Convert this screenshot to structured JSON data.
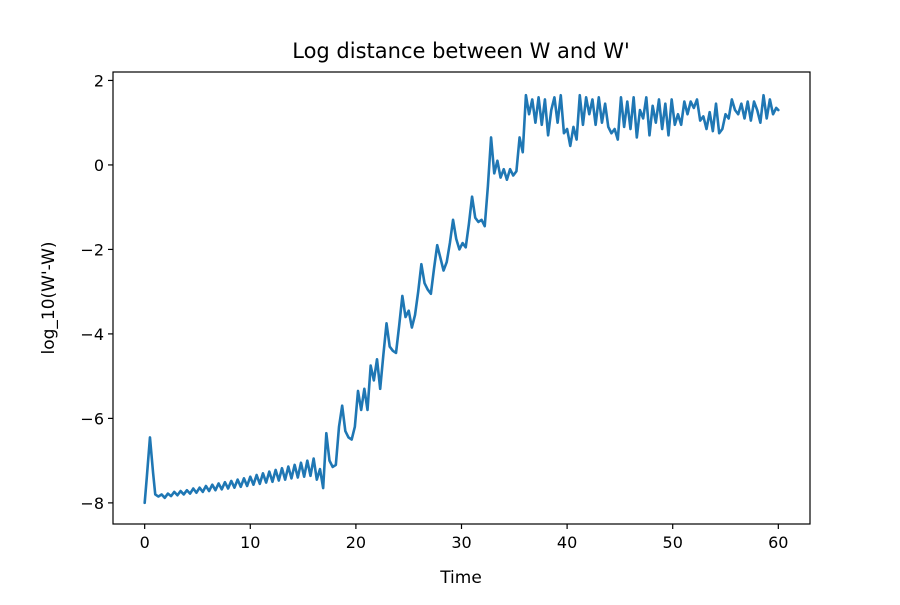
{
  "chart_data": {
    "type": "line",
    "title": "Log distance between W and W'",
    "xlabel": "Time",
    "ylabel": "log_10(W'-W)",
    "xlim": [
      -3,
      63
    ],
    "ylim": [
      -8.5,
      2.2
    ],
    "xticks": [
      0,
      10,
      20,
      30,
      40,
      50,
      60
    ],
    "yticks": [
      -8,
      -6,
      -4,
      -2,
      0,
      2
    ],
    "xtick_labels": [
      "0",
      "10",
      "20",
      "30",
      "40",
      "50",
      "60"
    ],
    "ytick_labels": [
      "−8",
      "−6",
      "−4",
      "−2",
      "0",
      "2"
    ],
    "grid": false,
    "legend": "none",
    "series": [
      {
        "color": "#1f77b4",
        "x": [
          0.0,
          0.2,
          0.5,
          0.8,
          1.0,
          1.3,
          1.6,
          1.9,
          2.2,
          2.5,
          2.8,
          3.1,
          3.4,
          3.7,
          4.0,
          4.3,
          4.6,
          4.9,
          5.2,
          5.5,
          5.8,
          6.1,
          6.4,
          6.7,
          7.0,
          7.3,
          7.6,
          7.9,
          8.2,
          8.5,
          8.8,
          9.1,
          9.4,
          9.7,
          10.0,
          10.3,
          10.6,
          10.9,
          11.2,
          11.5,
          11.8,
          12.1,
          12.4,
          12.7,
          13.0,
          13.3,
          13.6,
          13.9,
          14.2,
          14.5,
          14.8,
          15.1,
          15.4,
          15.7,
          16.0,
          16.3,
          16.6,
          16.9,
          17.2,
          17.5,
          17.8,
          18.1,
          18.4,
          18.7,
          19.0,
          19.3,
          19.6,
          19.9,
          20.2,
          20.5,
          20.8,
          21.1,
          21.4,
          21.7,
          22.0,
          22.3,
          22.6,
          22.9,
          23.2,
          23.5,
          23.8,
          24.1,
          24.4,
          24.7,
          25.0,
          25.3,
          25.6,
          25.9,
          26.2,
          26.5,
          26.8,
          27.1,
          27.4,
          27.7,
          28.0,
          28.3,
          28.6,
          28.9,
          29.2,
          29.5,
          29.8,
          30.1,
          30.4,
          30.7,
          31.0,
          31.3,
          31.6,
          31.9,
          32.2,
          32.5,
          32.8,
          33.1,
          33.4,
          33.7,
          34.0,
          34.3,
          34.6,
          34.9,
          35.2,
          35.5,
          35.8,
          36.1,
          36.4,
          36.7,
          37.0,
          37.3,
          37.6,
          37.9,
          38.2,
          38.5,
          38.8,
          39.1,
          39.4,
          39.7,
          40.0,
          40.3,
          40.6,
          40.9,
          41.2,
          41.5,
          41.8,
          42.1,
          42.4,
          42.7,
          43.0,
          43.3,
          43.6,
          43.9,
          44.2,
          44.5,
          44.8,
          45.1,
          45.4,
          45.7,
          46.0,
          46.3,
          46.6,
          46.9,
          47.2,
          47.5,
          47.8,
          48.1,
          48.4,
          48.7,
          49.0,
          49.3,
          49.6,
          49.9,
          50.2,
          50.5,
          50.8,
          51.1,
          51.4,
          51.7,
          52.0,
          52.3,
          52.6,
          52.9,
          53.2,
          53.5,
          53.8,
          54.1,
          54.4,
          54.7,
          55.0,
          55.3,
          55.6,
          55.9,
          56.2,
          56.5,
          56.8,
          57.1,
          57.4,
          57.7,
          58.0,
          58.3,
          58.6,
          58.9,
          59.2,
          59.5,
          59.8,
          60.0
        ],
        "y": [
          -8.0,
          -7.4,
          -6.45,
          -7.3,
          -7.8,
          -7.85,
          -7.8,
          -7.88,
          -7.78,
          -7.84,
          -7.74,
          -7.82,
          -7.72,
          -7.8,
          -7.7,
          -7.78,
          -7.66,
          -7.76,
          -7.64,
          -7.74,
          -7.6,
          -7.72,
          -7.57,
          -7.7,
          -7.54,
          -7.68,
          -7.51,
          -7.66,
          -7.48,
          -7.64,
          -7.45,
          -7.62,
          -7.42,
          -7.6,
          -7.38,
          -7.57,
          -7.34,
          -7.55,
          -7.3,
          -7.52,
          -7.26,
          -7.5,
          -7.22,
          -7.47,
          -7.18,
          -7.45,
          -7.14,
          -7.42,
          -7.1,
          -7.4,
          -7.05,
          -7.38,
          -7.0,
          -7.36,
          -6.95,
          -7.45,
          -7.2,
          -7.65,
          -6.35,
          -7.0,
          -7.15,
          -7.1,
          -6.2,
          -5.7,
          -6.3,
          -6.45,
          -6.5,
          -6.2,
          -5.35,
          -5.8,
          -5.3,
          -5.8,
          -4.75,
          -5.1,
          -4.6,
          -5.3,
          -4.5,
          -3.75,
          -4.3,
          -4.4,
          -4.45,
          -3.8,
          -3.1,
          -3.6,
          -3.45,
          -3.85,
          -3.55,
          -3.0,
          -2.35,
          -2.8,
          -2.95,
          -3.05,
          -2.45,
          -1.9,
          -2.2,
          -2.5,
          -2.3,
          -1.85,
          -1.3,
          -1.75,
          -2.0,
          -1.85,
          -1.95,
          -1.4,
          -0.75,
          -1.25,
          -1.35,
          -1.3,
          -1.45,
          -0.5,
          0.65,
          -0.2,
          0.1,
          -0.3,
          -0.1,
          -0.35,
          -0.1,
          -0.25,
          -0.15,
          0.65,
          0.3,
          1.65,
          1.2,
          1.55,
          1.0,
          1.6,
          0.95,
          1.55,
          0.7,
          1.3,
          1.6,
          1.0,
          1.65,
          0.75,
          0.85,
          0.45,
          0.9,
          0.6,
          1.65,
          0.95,
          1.6,
          1.2,
          1.55,
          0.95,
          1.6,
          1.0,
          1.45,
          0.9,
          0.75,
          0.85,
          0.6,
          1.6,
          0.9,
          1.5,
          0.85,
          1.6,
          0.65,
          1.3,
          1.1,
          1.6,
          0.7,
          1.4,
          1.0,
          1.55,
          0.85,
          1.45,
          0.7,
          1.55,
          0.95,
          1.2,
          0.95,
          1.5,
          1.2,
          1.5,
          1.35,
          1.55,
          1.05,
          1.15,
          0.85,
          1.25,
          0.8,
          1.45,
          0.75,
          0.85,
          1.2,
          1.1,
          1.55,
          1.3,
          1.2,
          1.45,
          1.1,
          1.5,
          1.05,
          1.5,
          1.3,
          1.0,
          1.65,
          1.1,
          1.55,
          1.2,
          1.35,
          1.3
        ]
      }
    ]
  }
}
